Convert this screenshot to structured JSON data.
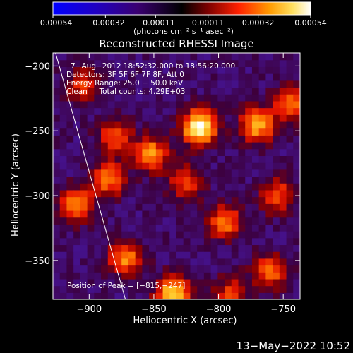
{
  "chart_data": {
    "type": "heatmap",
    "title": "Reconstructed RHESSI Image",
    "xlabel": "Heliocentric X (arcsec)",
    "ylabel": "Heliocentric Y (arcsec)",
    "x_range": [
      -928,
      -737
    ],
    "y_range": [
      -380,
      -190
    ],
    "x_ticks": [
      -900,
      -850,
      -800,
      -750
    ],
    "y_ticks": [
      -200,
      -250,
      -300,
      -350
    ],
    "x_tick_labels": [
      "−900",
      "−850",
      "−800",
      "−750"
    ],
    "y_tick_labels": [
      "−200",
      "−250",
      "−300",
      "−350"
    ],
    "colorbar": {
      "range": [
        -0.00054,
        0.00054
      ],
      "tick_values": [
        -0.00054,
        -0.00032,
        -0.00011,
        0.00011,
        0.00032,
        0.00054
      ],
      "tick_labels": [
        "−0.00054",
        "−0.00032",
        "−0.00011",
        "0.00011",
        "0.00032",
        "0.00054"
      ],
      "unit_label": "(photons cm⁻² s⁻¹ asec⁻²)"
    },
    "annotations": [
      "7−Aug−2012 18:52:32.000 to 18:56:20.000",
      "Detectors: 3F 5F 6F 7F 8F, Att 0",
      "Energy Range: 25.0 − 50.0 keV",
      "Clean     Total counts: 4.29E+03"
    ],
    "peak_label": "Position of Peak = [−815,−247]",
    "peak": {
      "x": -815,
      "y": -247
    },
    "hot_spots": [
      {
        "x": -815,
        "y": -247,
        "value": 0.00054
      },
      {
        "x": -835,
        "y": -376,
        "value": 0.00045
      },
      {
        "x": -770,
        "y": -245,
        "value": 0.00036
      },
      {
        "x": -852,
        "y": -268,
        "value": 0.00033
      },
      {
        "x": -910,
        "y": -307,
        "value": 0.00032
      },
      {
        "x": -872,
        "y": -348,
        "value": 0.00031
      },
      {
        "x": -885,
        "y": -287,
        "value": 0.00028
      },
      {
        "x": -745,
        "y": -228,
        "value": 0.00029
      },
      {
        "x": -795,
        "y": -320,
        "value": 0.00027
      },
      {
        "x": -760,
        "y": -358,
        "value": 0.00026
      },
      {
        "x": -880,
        "y": -255,
        "value": 0.00024
      },
      {
        "x": -755,
        "y": -300,
        "value": 0.00024
      },
      {
        "x": -825,
        "y": -290,
        "value": 0.00022
      },
      {
        "x": -905,
        "y": -215,
        "value": 0.00018
      },
      {
        "x": -790,
        "y": -375,
        "value": 0.0002
      }
    ],
    "limb_line": [
      [
        -926,
        -190
      ],
      [
        -872,
        -380
      ]
    ],
    "background_level": -5e-05
  },
  "footer": {
    "timestamp": "13−May−2022 10:52"
  }
}
